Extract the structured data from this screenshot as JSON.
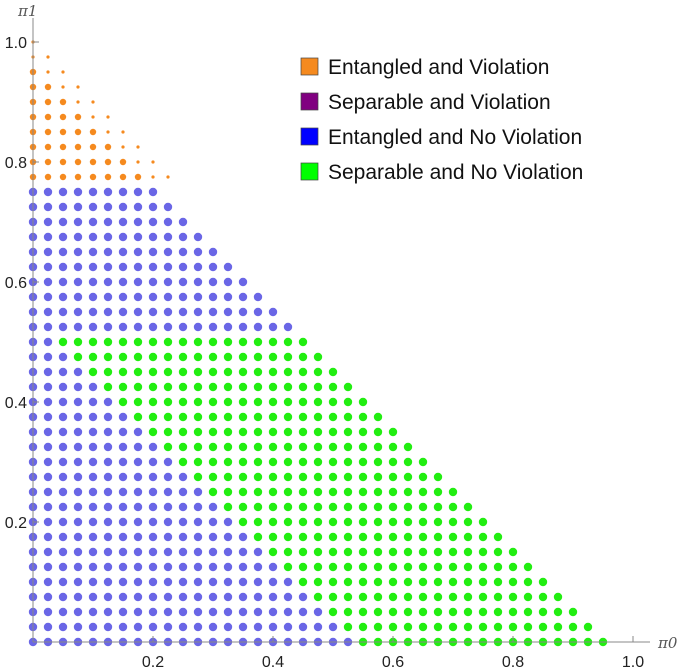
{
  "chart_data": {
    "type": "scatter",
    "title": "",
    "xlabel": "π0",
    "ylabel": "π1",
    "xlim": [
      0,
      1
    ],
    "ylim": [
      0,
      1
    ],
    "grid": false,
    "legend_position": "top-right",
    "x_ticks": [
      "0.2",
      "0.4",
      "0.6",
      "0.8",
      "1.0"
    ],
    "y_ticks": [
      "0.2",
      "0.4",
      "0.6",
      "0.8",
      "1.0"
    ],
    "grid_step": 0.025,
    "series": [
      {
        "name": "Entangled and Violation",
        "color": "#f58a1f",
        "region": "pi1 >= 0.775 and pi0 + pi1 <= 1 (small markers)"
      },
      {
        "name": "Separable and Violation",
        "color": "#800080",
        "region": "none"
      },
      {
        "name": "Entangled and No Violation",
        "color": "#6a66e6",
        "region": "pi0 + pi1 <= 0.95 and not separable"
      },
      {
        "name": "Separable and No Violation",
        "color": "#22ee11",
        "region": "pi1 <= 0.5 and pi0 >= 0.55 - pi1 and pi0 + pi1 <= 1"
      }
    ],
    "legend": [
      {
        "label": "Entangled and Violation",
        "color": "#f58a1f"
      },
      {
        "label": "Separable and Violation",
        "color": "#800080"
      },
      {
        "label": "Entangled and No Violation",
        "color": "#0000ff"
      },
      {
        "label": "Separable and No Violation",
        "color": "#00ff00"
      }
    ]
  }
}
